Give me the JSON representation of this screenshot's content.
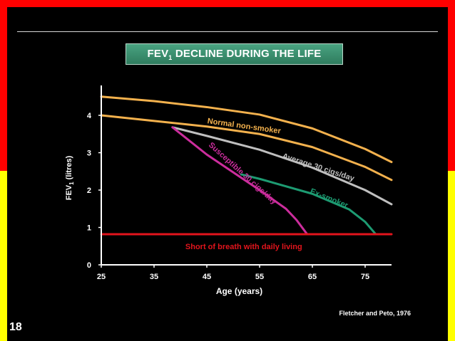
{
  "slide": {
    "title_main": "FEV",
    "title_sub": "1",
    "title_rest": " DECLINE DURING THE LIFE",
    "slide_number": "18",
    "citation": "Fletcher and Peto, 1976"
  },
  "colors": {
    "top_band": "#ff0000",
    "bottom_band": "#ffff00",
    "background": "#000000",
    "normal": "#f3b14d",
    "average": "#bfbfbf",
    "susceptible": "#cc2d9d",
    "ex_smoker": "#1d9b72",
    "threshold": "#e2141c",
    "axis": "#ffffff"
  },
  "chart_data": {
    "type": "line",
    "xlabel": "Age (years)",
    "ylabel_main": "FEV",
    "ylabel_sub": "1",
    "ylabel_rest": " (litres)",
    "xlim": [
      25,
      80
    ],
    "ylim": [
      0,
      4.8
    ],
    "x_ticks": [
      25,
      35,
      45,
      55,
      65,
      75
    ],
    "y_ticks": [
      0,
      1,
      2,
      3,
      4
    ],
    "series": [
      {
        "name": "",
        "color_key": "normal",
        "x": [
          25,
          35,
          45,
          55,
          65,
          75,
          80
        ],
        "y": [
          4.5,
          4.38,
          4.22,
          4.02,
          3.65,
          3.1,
          2.75
        ]
      },
      {
        "name": "Normal non-smoker",
        "color_key": "normal",
        "x": [
          25,
          35,
          45,
          55,
          65,
          75,
          80
        ],
        "y": [
          4.0,
          3.85,
          3.7,
          3.5,
          3.15,
          2.62,
          2.27
        ]
      },
      {
        "name": "Average 30 cigs/day",
        "color_key": "average",
        "x": [
          38.5,
          45,
          55,
          65,
          75,
          80
        ],
        "y": [
          3.68,
          3.45,
          3.08,
          2.6,
          2.0,
          1.62
        ]
      },
      {
        "name": "Susceptible 30 cigs/day",
        "color_key": "susceptible",
        "x": [
          38.5,
          45,
          55,
          60,
          62,
          64
        ],
        "y": [
          3.68,
          2.95,
          2.0,
          1.5,
          1.2,
          0.82
        ]
      },
      {
        "name": "Ex-smoker",
        "color_key": "ex_smoker",
        "x": [
          51.5,
          55,
          65,
          72,
          75,
          77
        ],
        "y": [
          2.42,
          2.3,
          1.9,
          1.48,
          1.15,
          0.82
        ]
      },
      {
        "name": "Short of breath with daily living",
        "color_key": "threshold",
        "x": [
          25,
          80
        ],
        "y": [
          0.82,
          0.82
        ]
      }
    ],
    "annotations": [
      {
        "text": "Normal non-smoker",
        "color_key": "normal",
        "x": 52,
        "y": 3.65,
        "angle": 8
      },
      {
        "text": "Average 30 cigs/day",
        "color_key": "average",
        "x": 66,
        "y": 2.55,
        "angle": 18
      },
      {
        "text": "Susceptible 30 cigs/day",
        "color_key": "susceptible",
        "x": 51.5,
        "y": 2.4,
        "angle": 42
      },
      {
        "text": "Ex-smoker",
        "color_key": "ex_smoker",
        "x": 68,
        "y": 1.72,
        "angle": 22
      },
      {
        "text": "Short of breath with daily living",
        "color_key": "threshold",
        "x": 52,
        "y": 0.42,
        "angle": 0
      }
    ]
  }
}
